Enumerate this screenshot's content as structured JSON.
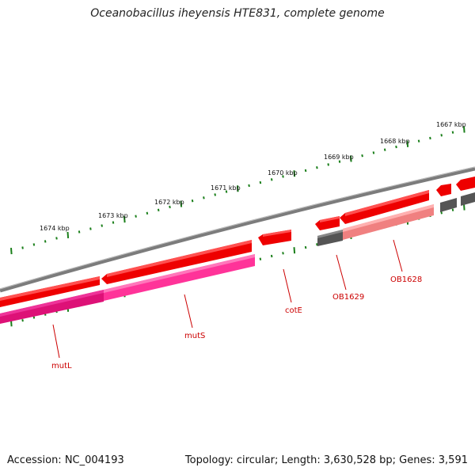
{
  "title": "Oceanobacillus iheyensis HTE831, complete genome",
  "accession": "Accession: NC_004193",
  "summary": "Topology: circular; Length: 3,630,528 bp; Genes: 3,591",
  "colors": {
    "backbone": "#8a8a8a",
    "forward_cds": "#ff0000",
    "reverse_cds": "#ff3399",
    "reverse_cds_light": "#ff8080",
    "other": "#666666",
    "ticks": "#1a7f1a",
    "gene_label": "#cc0000"
  },
  "kbp_labels": [
    "1674 kbp",
    "1673 kbp",
    "1672 kbp",
    "1671 kbp",
    "1670 kbp",
    "1669 kbp",
    "1668 kbp",
    "1667 kbp"
  ],
  "genes": [
    {
      "name": "mutL"
    },
    {
      "name": "mutS"
    },
    {
      "name": "cotE"
    },
    {
      "name": "OB1629"
    },
    {
      "name": "OB1628"
    }
  ]
}
